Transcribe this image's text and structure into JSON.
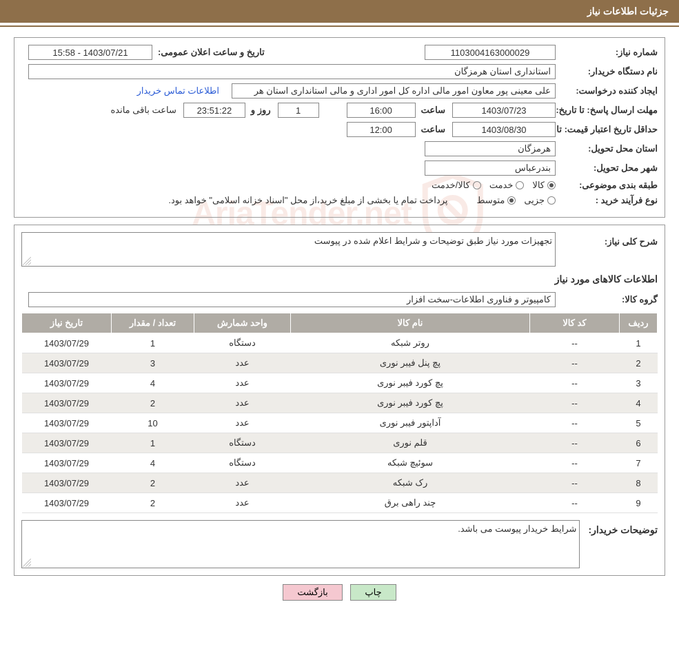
{
  "header": {
    "title": "جزئیات اطلاعات نیاز"
  },
  "fields": {
    "need_number_label": "شماره نیاز:",
    "need_number": "1103004163000029",
    "announce_label": "تاریخ و ساعت اعلان عمومی:",
    "announce_value": "1403/07/21 - 15:58",
    "buyer_org_label": "نام دستگاه خریدار:",
    "buyer_org": "استانداری استان هرمزگان",
    "requester_label": "ایجاد کننده درخواست:",
    "requester": "علی معینی پور معاون امور مالی اداره کل امور اداری و مالی استانداری استان هر",
    "contact_link": "اطلاعات تماس خریدار",
    "deadline_label": "مهلت ارسال پاسخ:",
    "until_label": "تا تاریخ:",
    "deadline_date": "1403/07/23",
    "time_label": "ساعت",
    "deadline_time": "16:00",
    "remain_days": "1",
    "day_and_label": "روز و",
    "remain_time": "23:51:22",
    "remain_suffix": "ساعت باقی مانده",
    "price_validity_label": "حداقل تاریخ اعتبار قیمت:",
    "price_date": "1403/08/30",
    "price_time": "12:00",
    "delivery_province_label": "استان محل تحویل:",
    "delivery_province": "هرمزگان",
    "delivery_city_label": "شهر محل تحویل:",
    "delivery_city": "بندرعباس",
    "category_label": "طبقه بندی موضوعی:",
    "cat_goods": "کالا",
    "cat_service": "خدمت",
    "cat_goods_service": "کالا/خدمت",
    "process_type_label": "نوع فرآیند خرید :",
    "proc_minor": "جزیی",
    "proc_medium": "متوسط",
    "payment_note": "پرداخت تمام یا بخشی از مبلغ خرید،از محل \"اسناد خزانه اسلامی\" خواهد بود.",
    "general_desc_label": "شرح کلی نیاز:",
    "general_desc": "تجهیزات مورد نیاز  طبق توضیحات و شرایط اعلام شده در پیوست",
    "items_section_title": "اطلاعات کالاهای مورد نیاز",
    "group_label": "گروه کالا:",
    "group_value": "کامپیوتر و فناوری اطلاعات-سخت افزار",
    "buyer_notes_label": "توضیحات خریدار:",
    "buyer_notes": "شرایط خریدار پیوست می باشد."
  },
  "table": {
    "headers": {
      "row": "ردیف",
      "code": "کد کالا",
      "name": "نام کالا",
      "unit": "واحد شمارش",
      "qty": "تعداد / مقدار",
      "date": "تاریخ نیاز"
    },
    "rows": [
      {
        "n": "1",
        "code": "--",
        "name": "روتر شبکه",
        "unit": "دستگاه",
        "qty": "1",
        "date": "1403/07/29"
      },
      {
        "n": "2",
        "code": "--",
        "name": "پچ پنل فیبر نوری",
        "unit": "عدد",
        "qty": "3",
        "date": "1403/07/29"
      },
      {
        "n": "3",
        "code": "--",
        "name": "پچ کورد فیبر نوری",
        "unit": "عدد",
        "qty": "4",
        "date": "1403/07/29"
      },
      {
        "n": "4",
        "code": "--",
        "name": "پچ کورد فیبر نوری",
        "unit": "عدد",
        "qty": "2",
        "date": "1403/07/29"
      },
      {
        "n": "5",
        "code": "--",
        "name": "آداپتور فیبر نوری",
        "unit": "عدد",
        "qty": "10",
        "date": "1403/07/29"
      },
      {
        "n": "6",
        "code": "--",
        "name": "قلم نوری",
        "unit": "دستگاه",
        "qty": "1",
        "date": "1403/07/29"
      },
      {
        "n": "7",
        "code": "--",
        "name": "سوئیچ شبکه",
        "unit": "دستگاه",
        "qty": "4",
        "date": "1403/07/29"
      },
      {
        "n": "8",
        "code": "--",
        "name": "رک شبکه",
        "unit": "عدد",
        "qty": "2",
        "date": "1403/07/29"
      },
      {
        "n": "9",
        "code": "--",
        "name": "چند راهی برق",
        "unit": "عدد",
        "qty": "2",
        "date": "1403/07/29"
      }
    ]
  },
  "buttons": {
    "print": "چاپ",
    "back": "بازگشت"
  },
  "colors": {
    "header_bg": "#8e6f4a",
    "th_bg": "#b0aca5",
    "row_alt": "#eeece8",
    "btn_print": "#c8e8c8",
    "btn_back": "#f5c8d0",
    "link": "#2b5cd6"
  },
  "radio_state": {
    "category": "goods",
    "process": "medium"
  }
}
